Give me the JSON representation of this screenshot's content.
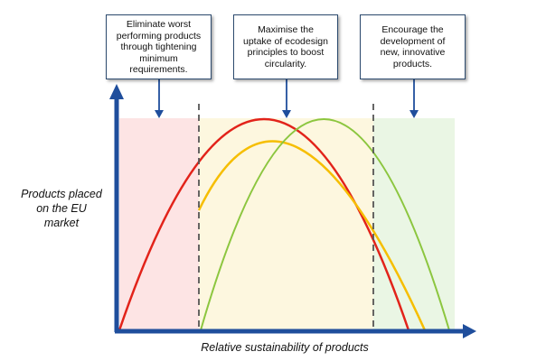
{
  "diagram": {
    "y_axis_label": [
      "Products placed",
      "on the EU",
      "market"
    ],
    "x_axis_label": "Relative sustainability of products",
    "callouts": [
      {
        "lines": [
          "Eliminate worst",
          "performing products",
          "through tightening",
          "minimum",
          "requirements."
        ]
      },
      {
        "lines": [
          "Maximise the",
          "uptake of ecodesign",
          "principles to boost",
          "circularity."
        ]
      },
      {
        "lines": [
          "Encourage the",
          "development of",
          "new, innovative",
          "products."
        ]
      }
    ],
    "zones": [
      {
        "name": "lower",
        "color": "#fde4e4"
      },
      {
        "name": "middle",
        "color": "#fdf7df"
      },
      {
        "name": "upper",
        "color": "#eaf6e4"
      }
    ],
    "curves": [
      {
        "name": "red",
        "color": "#e2231a"
      },
      {
        "name": "yellow",
        "color": "#f6be00"
      },
      {
        "name": "green",
        "color": "#8cc63f"
      }
    ],
    "colors": {
      "axis": "#1f4e9c",
      "divider": "#555555",
      "callout_border": "#2c4a6e"
    }
  }
}
